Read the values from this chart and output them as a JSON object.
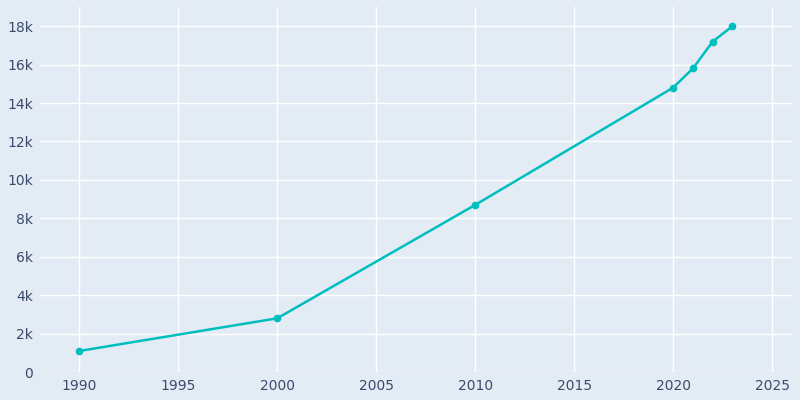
{
  "years": [
    1990,
    2000,
    2010,
    2020,
    2021,
    2022,
    2023
  ],
  "population": [
    1100,
    2800,
    8700,
    14800,
    15800,
    17200,
    18000
  ],
  "line_color": "#00BEBE",
  "bg_color": "#E3ECF5",
  "grid_color": "#FFFFFF",
  "tick_color": "#3B4A6B",
  "xlim": [
    1988,
    2026
  ],
  "ylim": [
    0,
    19000
  ],
  "yticks": [
    0,
    2000,
    4000,
    6000,
    8000,
    10000,
    12000,
    14000,
    16000,
    18000
  ],
  "ytick_labels": [
    "0",
    "2k",
    "4k",
    "6k",
    "8k",
    "10k",
    "12k",
    "14k",
    "16k",
    "18k"
  ],
  "xticks": [
    1990,
    1995,
    2000,
    2005,
    2010,
    2015,
    2020,
    2025
  ],
  "linewidth": 1.8,
  "markersize": 4.5
}
